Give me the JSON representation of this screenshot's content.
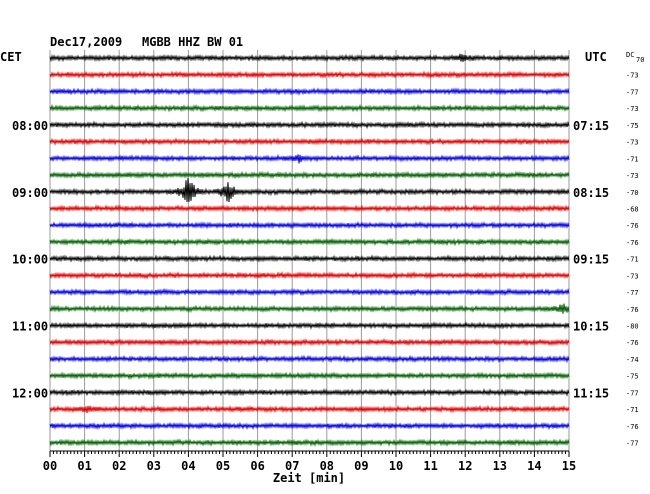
{
  "header": {
    "date": "Dec17,2009",
    "station": "MGBB HHZ BW 01",
    "left_tz": "CET",
    "right_tz": "UTC",
    "dc_label": "DC",
    "dc_first": "70"
  },
  "chart_data": {
    "type": "line",
    "title": "Dec17,2009   MGBB HHZ BW 01",
    "xlabel": "Zeit [min]",
    "xlim": [
      0,
      15
    ],
    "x_ticks": [
      "00",
      "01",
      "02",
      "03",
      "04",
      "05",
      "06",
      "07",
      "08",
      "09",
      "10",
      "11",
      "12",
      "13",
      "14",
      "15"
    ],
    "grid": true,
    "trace_colors": [
      "#000000",
      "#e00000",
      "#0000e0",
      "#006000"
    ],
    "traces": 24,
    "left_hour_labels": [
      {
        "trace": 4,
        "text": "08:00"
      },
      {
        "trace": 8,
        "text": "09:00"
      },
      {
        "trace": 12,
        "text": "10:00"
      },
      {
        "trace": 16,
        "text": "11:00"
      },
      {
        "trace": 20,
        "text": "12:00"
      }
    ],
    "right_hour_labels": [
      {
        "trace": 4,
        "text": "07:15"
      },
      {
        "trace": 8,
        "text": "08:15"
      },
      {
        "trace": 12,
        "text": "09:15"
      },
      {
        "trace": 16,
        "text": "10:15"
      },
      {
        "trace": 20,
        "text": "11:15"
      }
    ],
    "dc_offsets": [
      "",
      "-73",
      "-77",
      "-73",
      "-75",
      "-73",
      "-71",
      "-73",
      "-70",
      "-68",
      "-76",
      "-76",
      "-71",
      "-73",
      "-77",
      "-76",
      "-80",
      "-76",
      "-74",
      "-75",
      "-77",
      "-71",
      "-76",
      "-77"
    ],
    "events": [
      {
        "trace": 0,
        "minute": 11.9,
        "amplitude": 1.6
      },
      {
        "trace": 6,
        "minute": 7.2,
        "amplitude": 1.5
      },
      {
        "trace": 8,
        "minute": 4.0,
        "amplitude": 7.5
      },
      {
        "trace": 8,
        "minute": 5.15,
        "amplitude": 5.0
      },
      {
        "trace": 15,
        "minute": 14.85,
        "amplitude": 2.0
      },
      {
        "trace": 21,
        "minute": 1.1,
        "amplitude": 1.6
      }
    ]
  }
}
